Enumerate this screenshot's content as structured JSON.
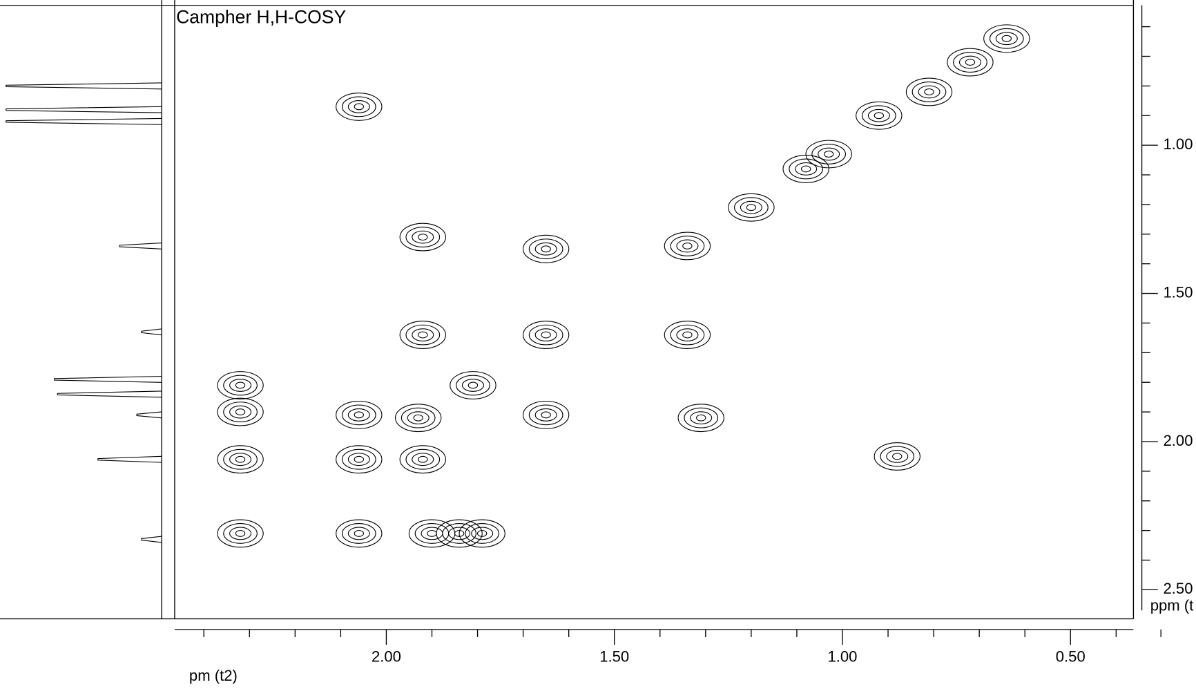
{
  "chart_data": {
    "type": "cosy",
    "title": "Campher H,H-COSY",
    "x_label": "pm (t2)",
    "y_label": "ppm (t",
    "xlim": [
      2.464,
      0.362
    ],
    "ylim": [
      0.528,
      2.598
    ],
    "xticks": [
      {
        "value": 2,
        "label": "2.00"
      },
      {
        "value": 1.5,
        "label": "1.50"
      },
      {
        "value": 1,
        "label": "1.00"
      },
      {
        "value": 0.5,
        "label": "0.50"
      }
    ],
    "yticks": [
      {
        "value": 1,
        "label": "1.00"
      },
      {
        "value": 1.5,
        "label": "1.50"
      },
      {
        "value": 2,
        "label": "2.00"
      },
      {
        "value": 2.5,
        "label": "2.50"
      }
    ],
    "xminorticks": [
      2.4,
      2.3,
      2.2,
      2.1,
      1.9,
      1.8,
      1.7,
      1.6,
      1.4,
      1.3,
      1.2,
      1.1,
      0.9,
      0.8,
      0.7,
      0.6,
      0.4
    ],
    "yminorticks": [
      0.6,
      0.7,
      0.8,
      0.9,
      1.1,
      1.2,
      1.3,
      1.4,
      1.6,
      1.7,
      1.8,
      1.9,
      2.1,
      2.2,
      2.3,
      2.4
    ],
    "color": "#000000",
    "peaks": {
      "x": [
        2.32,
        2.32,
        2.32,
        2.32,
        2.06,
        2.06,
        2.06,
        1.92,
        1.92,
        1.93,
        1.92,
        1.9,
        1.84,
        1.79,
        1.81,
        1.65,
        1.65,
        1.65,
        1.34,
        1.34,
        1.31,
        1.2,
        1.08,
        1.03,
        0.92,
        0.81,
        0.72,
        0.64,
        0.88,
        2.06
      ],
      "y": [
        1.81,
        1.9,
        2.06,
        2.31,
        1.91,
        2.06,
        2.31,
        1.31,
        1.64,
        1.92,
        2.06,
        2.31,
        2.31,
        2.31,
        1.81,
        1.35,
        1.64,
        1.91,
        1.34,
        1.64,
        1.92,
        1.21,
        1.08,
        1.03,
        0.9,
        0.82,
        0.72,
        0.64,
        2.05,
        0.87
      ]
    },
    "projection": {
      "position": [
        0.8,
        0.88,
        0.92,
        1.34,
        1.63,
        1.79,
        1.84,
        1.91,
        2.06,
        2.33
      ],
      "intensity": [
        100,
        100,
        100,
        27,
        13,
        69,
        67,
        16,
        41,
        13
      ]
    }
  }
}
